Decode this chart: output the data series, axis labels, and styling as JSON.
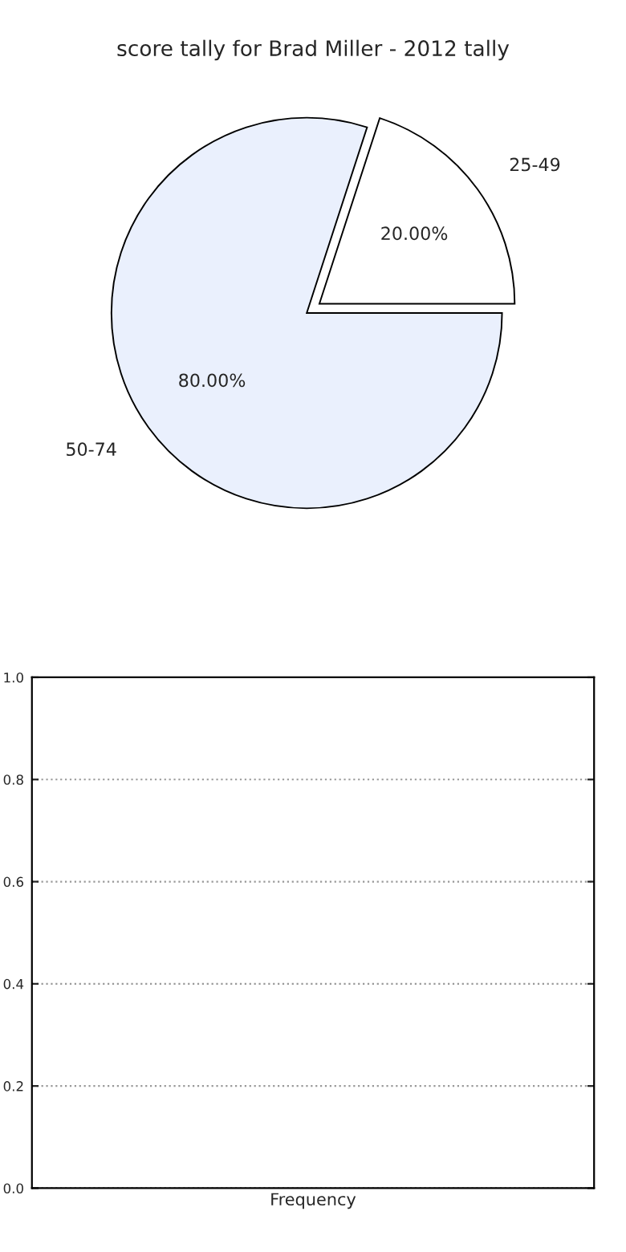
{
  "chart_data": [
    {
      "type": "pie",
      "title": "score tally for Brad Miller - 2012 tally",
      "categories": [
        "25-49",
        "50-74"
      ],
      "values": [
        20,
        80
      ],
      "colors": [
        "#ffffff",
        "#eaf0fd"
      ],
      "value_labels": [
        "20.00%",
        "80.00%"
      ]
    },
    {
      "type": "bar",
      "xlabel": "Frequency",
      "categories": [
        null
      ],
      "values": [
        null
      ],
      "ylim": [
        0,
        1
      ],
      "yticks": [
        {
          "value": 0,
          "label": "0.0"
        },
        {
          "value": 0.2,
          "label": "0.2"
        },
        {
          "value": 0.4,
          "label": "0.4"
        },
        {
          "value": 0.6,
          "label": "0.6"
        },
        {
          "value": 0.8,
          "label": "0.8"
        },
        {
          "value": 1,
          "label": "1.0"
        }
      ],
      "grid": "y"
    }
  ]
}
